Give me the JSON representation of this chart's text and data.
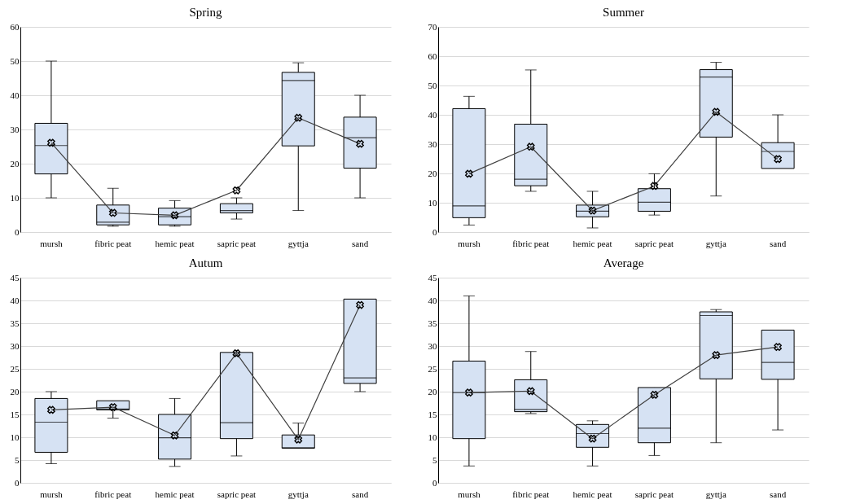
{
  "chart_data": [
    {
      "type": "box",
      "title": "Spring",
      "categories": [
        "mursh",
        "fibric peat",
        "hemic peat",
        "sapric peat",
        "gyttja",
        "sand"
      ],
      "ylim": [
        0,
        60
      ],
      "yticks": [
        0,
        10,
        20,
        30,
        40,
        50,
        60
      ],
      "grid": "y",
      "line_style": "solid",
      "series": [
        {
          "color": "#d6e2f3",
          "boxes": [
            {
              "low": 10,
              "q1": 17,
              "median": 25.3,
              "q3": 31.8,
              "high": 50
            },
            {
              "low": 1.7,
              "q1": 2.1,
              "median": 2.9,
              "q3": 7.9,
              "high": 12.8
            },
            {
              "low": 1.7,
              "q1": 2.1,
              "median": 4.5,
              "q3": 7,
              "high": 9.2
            },
            {
              "low": 3.8,
              "q1": 5.6,
              "median": 6.3,
              "q3": 8.3,
              "high": 10
            },
            {
              "low": 6.3,
              "q1": 25.2,
              "median": 44.3,
              "q3": 46.7,
              "high": 49.5
            },
            {
              "low": 10,
              "q1": 18.7,
              "median": 27.6,
              "q3": 33.6,
              "high": 40
            }
          ]
        },
        {
          "type": "line",
          "color": "#404040",
          "marker": "cross",
          "values": [
            26.1,
            5.6,
            4.9,
            12.2,
            33.4,
            25.8
          ]
        }
      ]
    },
    {
      "type": "box",
      "title": "Summer",
      "categories": [
        "mursh",
        "fibric peat",
        "hemic peat",
        "sapric peat",
        "gyttja",
        "sand"
      ],
      "ylim": [
        0,
        70
      ],
      "yticks": [
        0,
        10,
        20,
        30,
        40,
        50,
        60,
        70
      ],
      "grid": "y",
      "line_style": "solid",
      "series": [
        {
          "color": "#d6e2f3",
          "boxes": [
            {
              "low": 2.4,
              "q1": 4.9,
              "median": 8.9,
              "q3": 42.1,
              "high": 46.3
            },
            {
              "low": 13.9,
              "q1": 15.8,
              "median": 18,
              "q3": 36.8,
              "high": 55.3
            },
            {
              "low": 1.4,
              "q1": 5.2,
              "median": 7.1,
              "q3": 9.2,
              "high": 13.9
            },
            {
              "low": 5.8,
              "q1": 7.1,
              "median": 10.2,
              "q3": 14.8,
              "high": 19.9
            },
            {
              "low": 12.3,
              "q1": 32.4,
              "median": 52.9,
              "q3": 55.4,
              "high": 57.9
            },
            {
              "low": 21.7,
              "q1": 21.7,
              "median": 27.5,
              "q3": 30.5,
              "high": 40
            }
          ]
        },
        {
          "type": "line",
          "color": "#404040",
          "marker": "cross",
          "values": [
            19.9,
            29.1,
            7.3,
            15.7,
            41,
            24.9
          ]
        }
      ]
    },
    {
      "type": "box",
      "title": "Autum",
      "categories": [
        "mursh",
        "fibric peat",
        "hemic peat",
        "sapric peat",
        "gyttja",
        "sand"
      ],
      "ylim": [
        0,
        45
      ],
      "yticks": [
        0,
        5,
        10,
        15,
        20,
        25,
        30,
        35,
        40,
        45
      ],
      "grid": "y",
      "line_style": "solid",
      "series": [
        {
          "color": "#d6e2f3",
          "boxes": [
            {
              "low": 4.2,
              "q1": 6.7,
              "median": 13.3,
              "q3": 18.5,
              "high": 20
            },
            {
              "low": 14.2,
              "q1": 16,
              "median": 16.2,
              "q3": 18,
              "high": 18
            },
            {
              "low": 3.6,
              "q1": 5.2,
              "median": 9.9,
              "q3": 15,
              "high": 18.5
            },
            {
              "low": 5.9,
              "q1": 9.7,
              "median": 13.2,
              "q3": 28.6,
              "high": 28.6
            },
            {
              "low": 7.6,
              "q1": 7.6,
              "median": 7.7,
              "q3": 10.5,
              "high": 13.1
            },
            {
              "low": 20,
              "q1": 21.8,
              "median": 23,
              "q3": 40.3,
              "high": 40.3
            }
          ]
        },
        {
          "type": "line",
          "color": "#404040",
          "marker": "cross",
          "values": [
            16,
            16.6,
            10.4,
            28.4,
            9.5,
            39
          ]
        }
      ]
    },
    {
      "type": "box",
      "title": "Average",
      "categories": [
        "mursh",
        "fibric peat",
        "hemic peat",
        "sapric peat",
        "gyttja",
        "sand"
      ],
      "ylim": [
        0,
        45
      ],
      "yticks": [
        0,
        5,
        10,
        15,
        20,
        25,
        30,
        35,
        40,
        45
      ],
      "grid": "y",
      "line_style": "solid",
      "series": [
        {
          "color": "#d6e2f3",
          "boxes": [
            {
              "low": 3.7,
              "q1": 9.7,
              "median": 19.8,
              "q3": 26.7,
              "high": 41
            },
            {
              "low": 15.2,
              "q1": 15.6,
              "median": 16.1,
              "q3": 22.6,
              "high": 28.8
            },
            {
              "low": 3.7,
              "q1": 7.8,
              "median": 10.8,
              "q3": 12.8,
              "high": 13.6
            },
            {
              "low": 6,
              "q1": 8.8,
              "median": 12,
              "q3": 20.9,
              "high": 20.9
            },
            {
              "low": 8.8,
              "q1": 22.8,
              "median": 36.7,
              "q3": 37.5,
              "high": 38
            },
            {
              "low": 11.6,
              "q1": 22.7,
              "median": 26.4,
              "q3": 33.5,
              "high": 33.5
            }
          ]
        },
        {
          "type": "line",
          "color": "#404040",
          "marker": "cross",
          "values": [
            19.8,
            20.1,
            9.7,
            19.3,
            28,
            29.8
          ]
        }
      ]
    }
  ]
}
